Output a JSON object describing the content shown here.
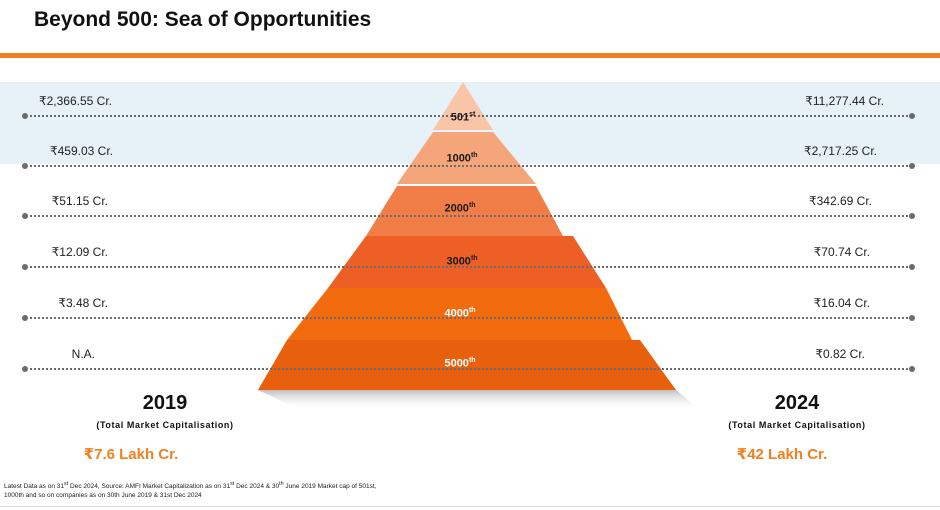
{
  "title": "Beyond 500: Sea of Opportunities",
  "tiers": [
    {
      "label": "501",
      "suffix": "st",
      "left_value": "₹2,366.55 Cr.",
      "right_value": "₹11,277.44 Cr.",
      "color": "#f8c5a8"
    },
    {
      "label": "1000",
      "suffix": "th",
      "left_value": "₹459.03 Cr.",
      "right_value": "₹2,717.25 Cr.",
      "color": "#f5a57a"
    },
    {
      "label": "2000",
      "suffix": "th",
      "left_value": "₹51.15 Cr.",
      "right_value": "₹342.69 Cr.",
      "color": "#f27e47"
    },
    {
      "label": "3000",
      "suffix": "th",
      "left_value": "₹12.09 Cr.",
      "right_value": "₹70.74 Cr.",
      "color": "#ee5f25"
    },
    {
      "label": "4000",
      "suffix": "th",
      "left_value": "₹3.48 Cr.",
      "right_value": "₹16.04 Cr.",
      "color": "#f26c0f"
    },
    {
      "label": "5000",
      "suffix": "th",
      "left_value": "N.A.",
      "right_value": "₹0.82 Cr.",
      "color": "#e85f0d"
    }
  ],
  "left_column": {
    "year": "2019",
    "caption": "(Total Market Capitalisation)",
    "total": "₹7.6 Lakh Cr."
  },
  "right_column": {
    "year": "2024",
    "caption": "(Total Market Capitalisation)",
    "total": "₹42 Lakh Cr."
  },
  "footnote": {
    "line1_a": "Latest Data as on 31",
    "line1_sup1": "st",
    "line1_b": " Dec 2024, Source: AMFI Market Capitalization as on 31",
    "line1_sup2": "st",
    "line1_c": " Dec 2024 & 30",
    "line1_sup3": "th",
    "line1_d": " June 2019 Market cap of 501st,",
    "line2": "1000th and so on companies as on 30th June 2019 & 31st Dec 2024"
  },
  "colors": {
    "accent": "#f07f1f",
    "band": "#e6f1f8",
    "dotted_line": "#6b6b6b"
  }
}
